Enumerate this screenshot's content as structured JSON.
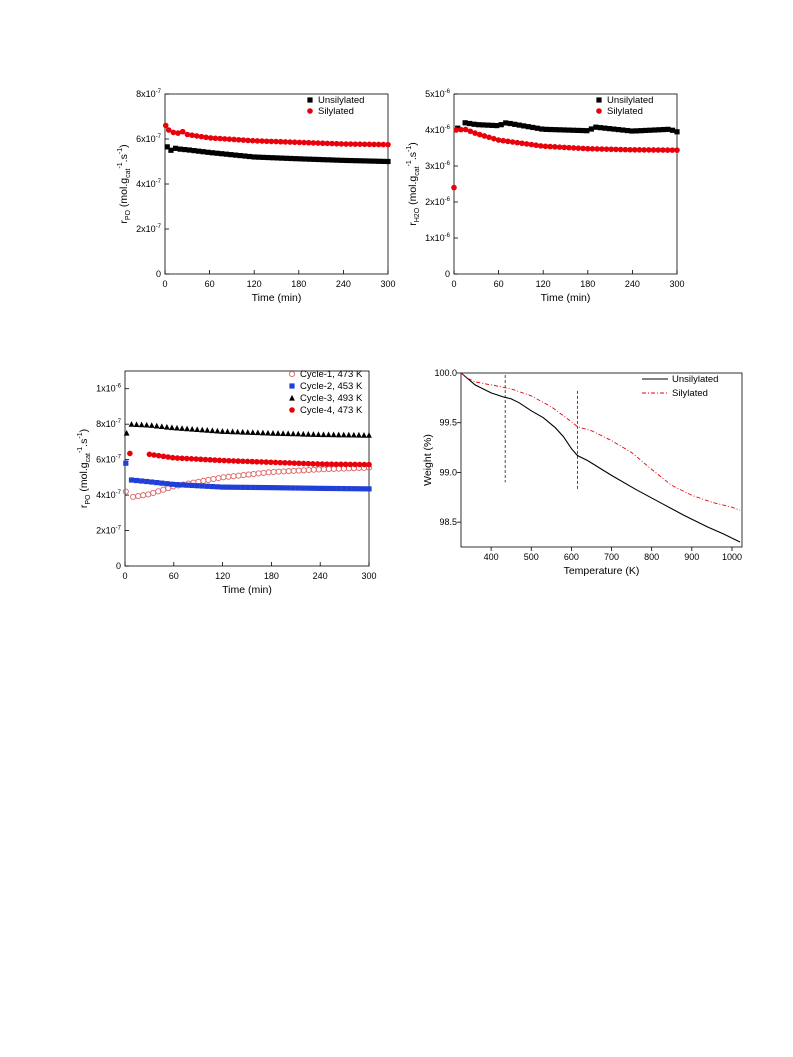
{
  "chart_data": [
    {
      "type": "scatter",
      "xlabel": "Time (min)",
      "ylabel": "r_PO (mol.g_cat^-1.s^-1)",
      "ylabel_parts": {
        "main": "r",
        "sub1": "PO",
        "mid": " (mol.g",
        "sub2": "cat",
        "sup2": "-1",
        "end1": ".s",
        "sup3": "-1",
        "end2": ")"
      },
      "xlim": [
        0,
        300
      ],
      "ylim": [
        0,
        8e-07
      ],
      "xticks": [
        0,
        60,
        120,
        180,
        240,
        300
      ],
      "xtick_labels": [
        "0",
        "60",
        "120",
        "180",
        "240",
        "300"
      ],
      "yticks": [
        0,
        2e-07,
        4e-07,
        6e-07,
        8e-07
      ],
      "ytick_labels": [
        {
          "main": "0",
          "exp": ""
        },
        {
          "main": "2x10",
          "exp": "-7"
        },
        {
          "main": "4x10",
          "exp": "-7"
        },
        {
          "main": "6x10",
          "exp": "-7"
        },
        {
          "main": "8x10",
          "exp": "-7"
        }
      ],
      "legend_position": "top-right",
      "series": [
        {
          "name": "Unsilylated",
          "color": "#000000",
          "marker": "square",
          "points": [
            [
              3,
              5.65e-07
            ],
            [
              8,
              5.5e-07
            ],
            [
              12,
              5.6e-07
            ],
            [
              20,
              5.55e-07
            ],
            [
              30,
              5.52e-07
            ],
            [
              60,
              5.4e-07
            ],
            [
              120,
              5.2e-07
            ],
            [
              180,
              5.12e-07
            ],
            [
              240,
              5.05e-07
            ],
            [
              300,
              5e-07
            ]
          ]
        },
        {
          "name": "Silylated",
          "color": "#e8000b",
          "marker": "circle",
          "points": [
            [
              1,
              6.6e-07
            ],
            [
              5,
              6.4e-07
            ],
            [
              10,
              6.3e-07
            ],
            [
              20,
              6.25e-07
            ],
            [
              25,
              6.35e-07
            ],
            [
              30,
              6.2e-07
            ],
            [
              60,
              6.05e-07
            ],
            [
              120,
              5.92e-07
            ],
            [
              180,
              5.85e-07
            ],
            [
              240,
              5.78e-07
            ],
            [
              300,
              5.75e-07
            ]
          ]
        }
      ]
    },
    {
      "type": "scatter",
      "xlabel": "Time (min)",
      "ylabel": "r_H2O (mol.g_cat^-1.s^-1)",
      "ylabel_parts": {
        "main": "r",
        "sub1": "H2O",
        "mid": " (mol.g",
        "sub2": "cat",
        "sup2": "-1",
        "end1": ".s",
        "sup3": "-1",
        "end2": ")"
      },
      "xlim": [
        0,
        300
      ],
      "ylim": [
        0,
        5e-06
      ],
      "xticks": [
        0,
        60,
        120,
        180,
        240,
        300
      ],
      "xtick_labels": [
        "0",
        "60",
        "120",
        "180",
        "240",
        "300"
      ],
      "yticks": [
        0,
        1e-06,
        2e-06,
        3e-06,
        4e-06,
        5e-06
      ],
      "ytick_labels": [
        {
          "main": "0",
          "exp": ""
        },
        {
          "main": "1x10",
          "exp": "-6"
        },
        {
          "main": "2x10",
          "exp": "-6"
        },
        {
          "main": "3x10",
          "exp": "-6"
        },
        {
          "main": "4x10",
          "exp": "-6"
        },
        {
          "main": "5x10",
          "exp": "-6"
        }
      ],
      "legend_position": "top-right",
      "series": [
        {
          "name": "Unsilylated",
          "color": "#000000",
          "marker": "square",
          "points": [
            [
              5,
              4.05e-06
            ],
            [
              15,
              4.2e-06
            ],
            [
              30,
              4.15e-06
            ],
            [
              60,
              4.12e-06
            ],
            [
              70,
              4.2e-06
            ],
            [
              120,
              4.02e-06
            ],
            [
              180,
              3.98e-06
            ],
            [
              190,
              4.08e-06
            ],
            [
              240,
              3.97e-06
            ],
            [
              290,
              4.02e-06
            ],
            [
              300,
              3.95e-06
            ]
          ]
        },
        {
          "name": "Silylated",
          "color": "#e8000b",
          "marker": "circle",
          "points": [
            [
              0,
              2.4e-06
            ],
            [
              3,
              4e-06
            ],
            [
              15,
              4.02e-06
            ],
            [
              30,
              3.9e-06
            ],
            [
              60,
              3.72e-06
            ],
            [
              120,
              3.55e-06
            ],
            [
              180,
              3.48e-06
            ],
            [
              240,
              3.45e-06
            ],
            [
              300,
              3.44e-06
            ]
          ]
        }
      ]
    },
    {
      "type": "scatter",
      "xlabel": "Time (min)",
      "ylabel": "r_PO (mol.g_cat^-1.s^-1)",
      "ylabel_parts": {
        "main": "r",
        "sub1": "PO",
        "mid": " (mol.g",
        "sub2": "cat",
        "sup2": "-1",
        "end1": ".s",
        "sup3": "-1",
        "end2": ")"
      },
      "xlim": [
        0,
        300
      ],
      "ylim": [
        0,
        1.1e-06
      ],
      "xticks": [
        0,
        60,
        120,
        180,
        240,
        300
      ],
      "xtick_labels": [
        "0",
        "60",
        "120",
        "180",
        "240",
        "300"
      ],
      "yticks": [
        0,
        2e-07,
        4e-07,
        6e-07,
        8e-07,
        1e-06
      ],
      "ytick_labels": [
        {
          "main": "0",
          "exp": ""
        },
        {
          "main": "2x10",
          "exp": "-7"
        },
        {
          "main": "4x10",
          "exp": "-7"
        },
        {
          "main": "6x10",
          "exp": "-7"
        },
        {
          "main": "8x10",
          "exp": "-7"
        },
        {
          "main": "1x10",
          "exp": "-6"
        }
      ],
      "legend_position": "top-right",
      "series": [
        {
          "name": "Cycle-1, 473 K",
          "color": "#e06060",
          "marker": "circle-open",
          "points": [
            [
              1,
              4.2e-07
            ],
            [
              10,
              3.9e-07
            ],
            [
              30,
              4.05e-07
            ],
            [
              60,
              4.5e-07
            ],
            [
              120,
              5e-07
            ],
            [
              180,
              5.3e-07
            ],
            [
              240,
              5.45e-07
            ],
            [
              300,
              5.55e-07
            ]
          ]
        },
        {
          "name": "Cycle-2, 453 K",
          "color": "#1f3fd6",
          "marker": "square",
          "points": [
            [
              1,
              5.8e-07
            ],
            [
              8,
              4.85e-07
            ],
            [
              30,
              4.75e-07
            ],
            [
              60,
              4.6e-07
            ],
            [
              120,
              4.45e-07
            ],
            [
              180,
              4.42e-07
            ],
            [
              240,
              4.38e-07
            ],
            [
              300,
              4.35e-07
            ]
          ]
        },
        {
          "name": "Cycle-3, 493 K",
          "color": "#000000",
          "marker": "triangle",
          "points": [
            [
              2,
              7.5e-07
            ],
            [
              8,
              8e-07
            ],
            [
              30,
              7.95e-07
            ],
            [
              60,
              7.8e-07
            ],
            [
              120,
              7.6e-07
            ],
            [
              180,
              7.5e-07
            ],
            [
              240,
              7.42e-07
            ],
            [
              300,
              7.38e-07
            ]
          ]
        },
        {
          "name": "Cycle-4, 473 K",
          "color": "#e8000b",
          "marker": "circle",
          "points": [
            [
              6,
              6.35e-07
            ],
            [
              30,
              6.3e-07
            ],
            [
              60,
              6.1e-07
            ],
            [
              120,
              5.95e-07
            ],
            [
              180,
              5.85e-07
            ],
            [
              240,
              5.75e-07
            ],
            [
              300,
              5.72e-07
            ]
          ]
        }
      ]
    },
    {
      "type": "line",
      "xlabel": "Temperature (K)",
      "ylabel": "Weight (%)",
      "xlim": [
        325,
        1025
      ],
      "ylim": [
        98.25,
        100.0
      ],
      "xticks": [
        400,
        500,
        600,
        700,
        800,
        900,
        1000
      ],
      "xtick_labels": [
        "400",
        "500",
        "600",
        "700",
        "800",
        "900",
        "1000"
      ],
      "yticks": [
        98.5,
        99.0,
        99.5,
        100.0
      ],
      "ytick_labels": [
        {
          "main": "98.5",
          "exp": ""
        },
        {
          "main": "99.0",
          "exp": ""
        },
        {
          "main": "99.5",
          "exp": ""
        },
        {
          "main": "100.0",
          "exp": ""
        }
      ],
      "legend_position": "top-right",
      "vlines": [
        {
          "x": 435,
          "y1": 98.9,
          "y2": 99.98
        },
        {
          "x": 615,
          "y1": 98.82,
          "y2": 99.82
        }
      ],
      "series": [
        {
          "name": "Unsilylated",
          "color": "#000000",
          "dash": "solid",
          "points": [
            [
              325,
              100.0
            ],
            [
              340,
              99.95
            ],
            [
              360,
              99.88
            ],
            [
              380,
              99.84
            ],
            [
              400,
              99.8
            ],
            [
              430,
              99.76
            ],
            [
              450,
              99.74
            ],
            [
              470,
              99.7
            ],
            [
              500,
              99.62
            ],
            [
              530,
              99.55
            ],
            [
              560,
              99.45
            ],
            [
              580,
              99.36
            ],
            [
              600,
              99.24
            ],
            [
              615,
              99.17
            ],
            [
              640,
              99.12
            ],
            [
              700,
              98.97
            ],
            [
              760,
              98.83
            ],
            [
              820,
              98.7
            ],
            [
              880,
              98.57
            ],
            [
              940,
              98.45
            ],
            [
              980,
              98.38
            ],
            [
              1000,
              98.34
            ],
            [
              1020,
              98.3
            ]
          ]
        },
        {
          "name": "Silylated",
          "color": "#e8000b",
          "dash": "dashdot",
          "points": [
            [
              325,
              100.0
            ],
            [
              340,
              99.95
            ],
            [
              360,
              99.91
            ],
            [
              400,
              99.88
            ],
            [
              450,
              99.84
            ],
            [
              500,
              99.77
            ],
            [
              550,
              99.66
            ],
            [
              600,
              99.51
            ],
            [
              615,
              99.46
            ],
            [
              650,
              99.42
            ],
            [
              700,
              99.32
            ],
            [
              750,
              99.2
            ],
            [
              800,
              99.03
            ],
            [
              850,
              98.87
            ],
            [
              900,
              98.77
            ],
            [
              950,
              98.7
            ],
            [
              1000,
              98.65
            ],
            [
              1020,
              98.62
            ]
          ]
        }
      ]
    }
  ]
}
